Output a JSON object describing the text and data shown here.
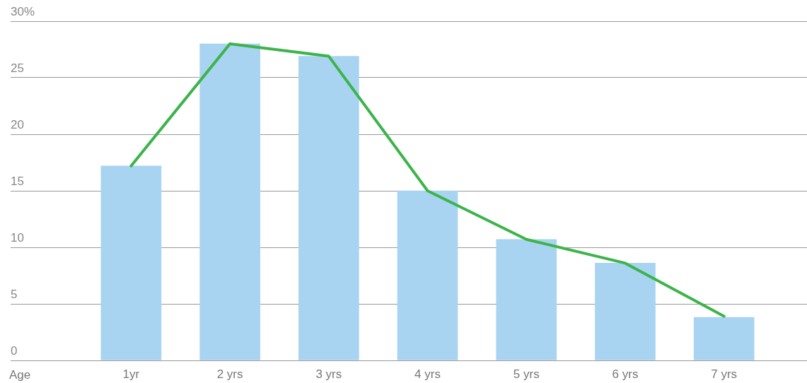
{
  "chart_data": {
    "type": "bar",
    "xlabel": "Age",
    "categories": [
      "1yr",
      "2 yrs",
      "3 yrs",
      "4 yrs",
      "5 yrs",
      "6 yrs",
      "7 yrs"
    ],
    "series": [
      {
        "color": "#a8d4f2",
        "values": [
          17.2,
          28,
          26.9,
          15,
          10.7,
          8.6,
          3.8
        ]
      },
      {
        "type": "line",
        "color": "#3cb44a",
        "values": [
          17.2,
          28,
          26.9,
          15,
          10.7,
          8.6,
          3.9
        ]
      }
    ],
    "ylim": [
      0,
      30
    ],
    "yticks": [
      0,
      5,
      10,
      15,
      20,
      25,
      {
        "value": 30,
        "label": "30%"
      }
    ],
    "grid": "y",
    "legend": false,
    "marker": "none",
    "line_style": "solid"
  }
}
